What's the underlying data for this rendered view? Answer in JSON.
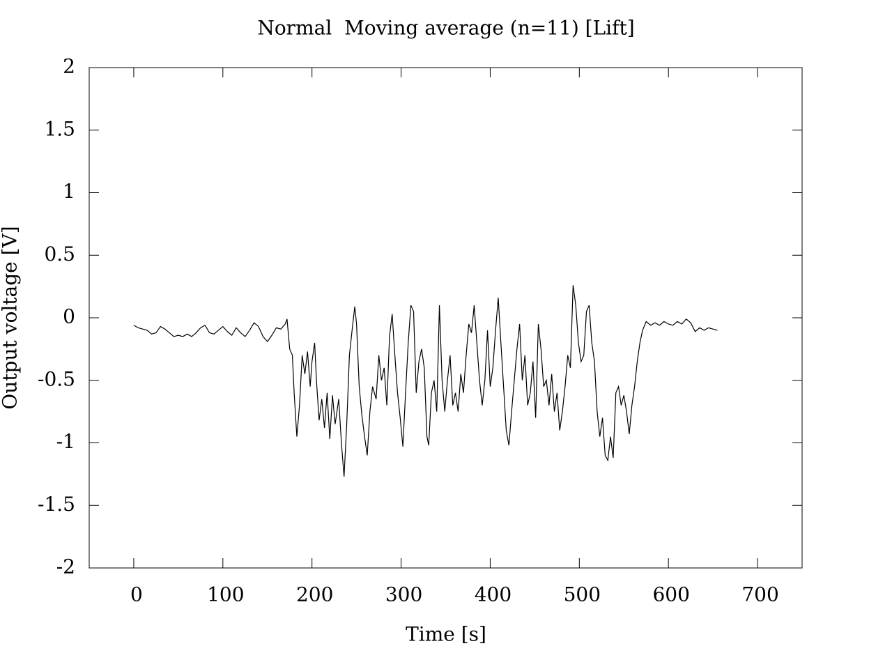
{
  "chart_data": {
    "type": "line",
    "title": "Normal  Moving average (n=11) [Lift]",
    "x_label": "Time [s]",
    "y_label": "Output voltage [V]",
    "xlim": [
      -50,
      750
    ],
    "ylim": [
      -2,
      2
    ],
    "xticks": [
      0,
      100,
      200,
      300,
      400,
      500,
      600,
      700
    ],
    "yticks": [
      -2,
      -1.5,
      -1,
      -0.5,
      0,
      0.5,
      1,
      1.5,
      2
    ],
    "grid": false,
    "x": [
      0,
      5,
      10,
      15,
      20,
      25,
      30,
      35,
      40,
      45,
      50,
      55,
      60,
      65,
      70,
      75,
      80,
      85,
      90,
      95,
      100,
      105,
      110,
      115,
      120,
      125,
      130,
      135,
      140,
      145,
      150,
      155,
      160,
      165,
      170,
      172,
      175,
      178,
      180,
      183,
      186,
      189,
      192,
      195,
      198,
      200,
      203,
      205,
      208,
      211,
      214,
      217,
      220,
      223,
      226,
      230,
      233,
      236,
      239,
      242,
      245,
      248,
      250,
      253,
      256,
      259,
      262,
      265,
      268,
      272,
      275,
      278,
      281,
      284,
      287,
      290,
      293,
      296,
      299,
      302,
      305,
      308,
      311,
      314,
      317,
      320,
      323,
      326,
      329,
      331,
      334,
      337,
      340,
      343,
      346,
      349,
      352,
      355,
      358,
      361,
      364,
      367,
      370,
      373,
      376,
      379,
      382,
      385,
      388,
      391,
      394,
      397,
      400,
      403,
      406,
      409,
      412,
      415,
      418,
      421,
      424,
      427,
      430,
      433,
      436,
      439,
      442,
      445,
      448,
      451,
      454,
      457,
      460,
      463,
      466,
      469,
      472,
      475,
      478,
      481,
      484,
      487,
      490,
      493,
      496,
      499,
      502,
      505,
      508,
      511,
      514,
      517,
      520,
      523,
      526,
      529,
      532,
      535,
      538,
      541,
      544,
      547,
      550,
      553,
      556,
      559,
      562,
      565,
      568,
      571,
      575,
      580,
      585,
      590,
      595,
      600,
      605,
      610,
      615,
      620,
      625,
      630,
      635,
      640,
      645,
      650,
      655
    ],
    "series": [
      {
        "color": "#000000",
        "values": [
          -0.06,
          -0.08,
          -0.09,
          -0.1,
          -0.13,
          -0.12,
          -0.07,
          -0.09,
          -0.12,
          -0.15,
          -0.14,
          -0.15,
          -0.13,
          -0.15,
          -0.12,
          -0.08,
          -0.06,
          -0.12,
          -0.13,
          -0.1,
          -0.07,
          -0.11,
          -0.14,
          -0.08,
          -0.12,
          -0.15,
          -0.1,
          -0.04,
          -0.07,
          -0.15,
          -0.19,
          -0.14,
          -0.08,
          -0.09,
          -0.05,
          -0.01,
          -0.25,
          -0.3,
          -0.6,
          -0.95,
          -0.7,
          -0.3,
          -0.45,
          -0.27,
          -0.55,
          -0.35,
          -0.2,
          -0.5,
          -0.82,
          -0.65,
          -0.88,
          -0.6,
          -0.97,
          -0.62,
          -0.85,
          -0.65,
          -1.0,
          -1.27,
          -0.85,
          -0.3,
          -0.1,
          0.09,
          -0.05,
          -0.55,
          -0.78,
          -0.95,
          -1.1,
          -0.75,
          -0.55,
          -0.65,
          -0.3,
          -0.5,
          -0.4,
          -0.7,
          -0.15,
          0.03,
          -0.3,
          -0.6,
          -0.8,
          -1.03,
          -0.6,
          -0.2,
          0.1,
          0.05,
          -0.6,
          -0.35,
          -0.25,
          -0.4,
          -0.95,
          -1.02,
          -0.6,
          -0.5,
          -0.75,
          0.1,
          -0.5,
          -0.75,
          -0.5,
          -0.3,
          -0.7,
          -0.6,
          -0.75,
          -0.45,
          -0.6,
          -0.3,
          -0.05,
          -0.12,
          0.1,
          -0.2,
          -0.5,
          -0.7,
          -0.5,
          -0.1,
          -0.55,
          -0.4,
          -0.1,
          0.16,
          -0.2,
          -0.55,
          -0.9,
          -1.02,
          -0.75,
          -0.5,
          -0.25,
          -0.05,
          -0.5,
          -0.3,
          -0.7,
          -0.6,
          -0.35,
          -0.8,
          -0.05,
          -0.25,
          -0.55,
          -0.5,
          -0.7,
          -0.45,
          -0.75,
          -0.6,
          -0.9,
          -0.75,
          -0.55,
          -0.3,
          -0.4,
          0.26,
          0.1,
          -0.2,
          -0.35,
          -0.3,
          0.05,
          0.1,
          -0.2,
          -0.35,
          -0.75,
          -0.95,
          -0.8,
          -1.1,
          -1.14,
          -0.95,
          -1.12,
          -0.6,
          -0.55,
          -0.7,
          -0.62,
          -0.75,
          -0.93,
          -0.7,
          -0.55,
          -0.35,
          -0.2,
          -0.1,
          -0.03,
          -0.06,
          -0.04,
          -0.06,
          -0.03,
          -0.05,
          -0.06,
          -0.03,
          -0.05,
          -0.01,
          -0.04,
          -0.11,
          -0.08,
          -0.1,
          -0.08,
          -0.09,
          -0.1
        ]
      }
    ]
  }
}
